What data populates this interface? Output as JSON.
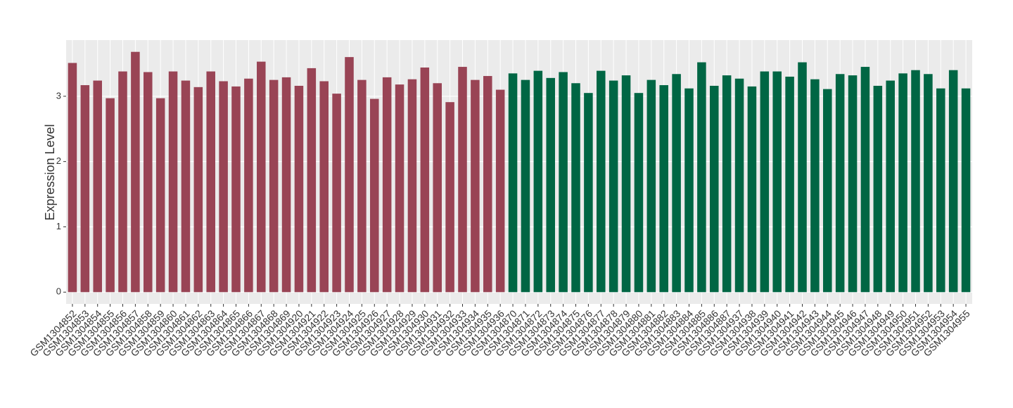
{
  "chart_data": {
    "type": "bar",
    "y_label": "Expression Level",
    "categories": [
      "GSM1304852",
      "GSM1304853",
      "GSM1304854",
      "GSM1304855",
      "GSM1304856",
      "GSM1304857",
      "GSM1304858",
      "GSM1304859",
      "GSM1304860",
      "GSM1304861",
      "GSM1304862",
      "GSM1304863",
      "GSM1304864",
      "GSM1304865",
      "GSM1304866",
      "GSM1304867",
      "GSM1304868",
      "GSM1304869",
      "GSM1304920",
      "GSM1304921",
      "GSM1304922",
      "GSM1304923",
      "GSM1304924",
      "GSM1304925",
      "GSM1304926",
      "GSM1304927",
      "GSM1304928",
      "GSM1304929",
      "GSM1304930",
      "GSM1304931",
      "GSM1304932",
      "GSM1304933",
      "GSM1304934",
      "GSM1304935",
      "GSM1304936",
      "GSM1304870",
      "GSM1304871",
      "GSM1304872",
      "GSM1304873",
      "GSM1304874",
      "GSM1304875",
      "GSM1304876",
      "GSM1304877",
      "GSM1304878",
      "GSM1304879",
      "GSM1304880",
      "GSM1304881",
      "GSM1304882",
      "GSM1304883",
      "GSM1304884",
      "GSM1304885",
      "GSM1304886",
      "GSM1304887",
      "GSM1304937",
      "GSM1304938",
      "GSM1304939",
      "GSM1304940",
      "GSM1304941",
      "GSM1304942",
      "GSM1304943",
      "GSM1304944",
      "GSM1304945",
      "GSM1304946",
      "GSM1304947",
      "GSM1304948",
      "GSM1304949",
      "GSM1304950",
      "GSM1304951",
      "GSM1304952",
      "GSM1304953",
      "GSM1304954",
      "GSM1304955"
    ],
    "values": [
      3.51,
      3.17,
      3.24,
      2.97,
      3.38,
      3.68,
      3.37,
      2.97,
      3.38,
      3.24,
      3.14,
      3.38,
      3.23,
      3.15,
      3.27,
      3.53,
      3.25,
      3.29,
      3.16,
      3.43,
      3.23,
      3.04,
      3.6,
      3.25,
      2.96,
      3.29,
      3.18,
      3.26,
      3.44,
      3.2,
      2.91,
      3.45,
      3.25,
      3.31,
      3.1,
      3.35,
      3.25,
      3.39,
      3.28,
      3.37,
      3.2,
      3.05,
      3.39,
      3.24,
      3.32,
      3.05,
      3.25,
      3.17,
      3.34,
      3.12,
      3.52,
      3.16,
      3.32,
      3.27,
      3.15,
      3.38,
      3.38,
      3.3,
      3.52,
      3.26,
      3.11,
      3.34,
      3.32,
      3.45,
      3.16,
      3.24,
      3.35,
      3.4,
      3.34,
      3.12,
      3.4,
      3.12
    ],
    "colors": [
      "#994455",
      "#994455",
      "#994455",
      "#994455",
      "#994455",
      "#994455",
      "#994455",
      "#994455",
      "#994455",
      "#994455",
      "#994455",
      "#994455",
      "#994455",
      "#994455",
      "#994455",
      "#994455",
      "#994455",
      "#994455",
      "#994455",
      "#994455",
      "#994455",
      "#994455",
      "#994455",
      "#994455",
      "#994455",
      "#994455",
      "#994455",
      "#994455",
      "#994455",
      "#994455",
      "#994455",
      "#994455",
      "#994455",
      "#994455",
      "#994455",
      "#006644",
      "#006644",
      "#006644",
      "#006644",
      "#006644",
      "#006644",
      "#006644",
      "#006644",
      "#006644",
      "#006644",
      "#006644",
      "#006644",
      "#006644",
      "#006644",
      "#006644",
      "#006644",
      "#006644",
      "#006644",
      "#006644",
      "#006644",
      "#006644",
      "#006644",
      "#006644",
      "#006644",
      "#006644",
      "#006644",
      "#006644",
      "#006644",
      "#006644",
      "#006644",
      "#006644",
      "#006644",
      "#006644",
      "#006644",
      "#006644",
      "#006644",
      "#006644"
    ],
    "ylim": [
      -0.18,
      3.86
    ],
    "yticks": [
      0,
      1,
      2,
      3
    ],
    "grid": true
  }
}
